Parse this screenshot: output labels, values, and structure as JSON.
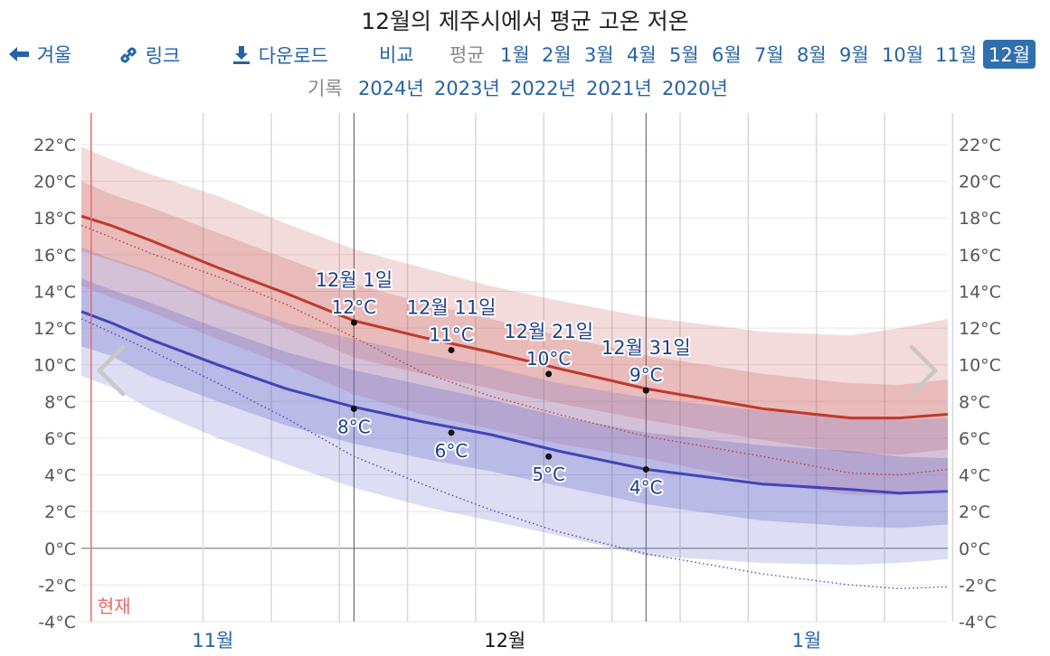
{
  "title": "12월의 제주시에서 평균 고온 저온",
  "toolbar": {
    "back_label": "겨울",
    "link_label": "링크",
    "download_label": "다운로드",
    "compare_label": "비교",
    "average_label": "평균",
    "months": [
      "1월",
      "2월",
      "3월",
      "4월",
      "5월",
      "6월",
      "7월",
      "8월",
      "9월",
      "10월",
      "11월",
      "12월"
    ],
    "active_month": "12월",
    "record_label": "기록",
    "years": [
      "2024년",
      "2023년",
      "2022년",
      "2021년",
      "2020년"
    ]
  },
  "chart_data": {
    "type": "area",
    "title": "12월의 제주시에서 평균 고온 저온",
    "x_axis_labels": [
      {
        "label": "11월",
        "day": -14.5
      },
      {
        "label": "12월",
        "day": 15.5
      },
      {
        "label": "1월",
        "day": 46.5
      }
    ],
    "bold_month_label": "12월",
    "xlim": [
      -28,
      61
    ],
    "ylim": [
      -4,
      23
    ],
    "y_ticks": [
      -4,
      -2,
      0,
      2,
      4,
      6,
      8,
      10,
      12,
      14,
      16,
      18,
      20,
      22
    ],
    "y_tick_labels": [
      "-4°C",
      "-2°C",
      "0°C",
      "2°C",
      "4°C",
      "6°C",
      "8°C",
      "10°C",
      "12°C",
      "14°C",
      "16°C",
      "18°C",
      "20°C",
      "22°C"
    ],
    "now_label": "현재",
    "now_day": -27,
    "highlight_days": [
      0,
      30
    ],
    "x": [
      -28,
      -25,
      -21,
      -14,
      -7,
      0,
      7,
      14,
      21,
      30,
      42,
      51,
      56,
      61
    ],
    "series": [
      {
        "kind": "high_mean",
        "color": "#c0392b",
        "values": [
          18.1,
          17.6,
          16.8,
          15.3,
          13.9,
          12.4,
          11.5,
          10.7,
          9.8,
          8.7,
          7.6,
          7.1,
          7.1,
          7.3
        ]
      },
      {
        "kind": "high_band_inner",
        "upper": [
          20.0,
          19.3,
          18.6,
          17.2,
          15.8,
          14.4,
          13.4,
          12.5,
          11.6,
          10.5,
          9.5,
          9.0,
          8.9,
          9.2
        ],
        "lower": [
          16.2,
          15.7,
          15.0,
          13.4,
          12.0,
          10.4,
          9.5,
          8.7,
          7.9,
          7.0,
          5.9,
          5.2,
          5.1,
          5.4
        ]
      },
      {
        "kind": "high_band_outer",
        "upper": [
          21.9,
          21.2,
          20.4,
          19.2,
          17.7,
          16.3,
          15.3,
          14.3,
          13.5,
          12.6,
          11.8,
          11.6,
          12.0,
          12.5
        ],
        "lower": [
          14.3,
          13.7,
          12.9,
          11.4,
          10.0,
          8.4,
          7.3,
          6.5,
          5.7,
          4.9,
          3.6,
          2.9,
          2.9,
          3.2
        ]
      },
      {
        "kind": "low_mean",
        "color": "#4343b8",
        "values": [
          12.9,
          12.3,
          11.4,
          10.0,
          8.7,
          7.7,
          6.9,
          6.2,
          5.3,
          4.3,
          3.5,
          3.2,
          3.0,
          3.1
        ]
      },
      {
        "kind": "low_band_inner",
        "upper": [
          14.7,
          14.1,
          13.4,
          12.0,
          10.7,
          9.7,
          8.9,
          8.1,
          7.2,
          6.3,
          5.6,
          5.3,
          5.0,
          4.9
        ],
        "lower": [
          11.0,
          10.5,
          9.4,
          8.0,
          6.7,
          5.7,
          4.9,
          4.2,
          3.4,
          2.4,
          1.5,
          1.2,
          1.1,
          1.3
        ]
      },
      {
        "kind": "low_band_outer",
        "upper": [
          16.4,
          15.8,
          15.1,
          13.6,
          12.3,
          11.4,
          10.6,
          9.9,
          9.0,
          8.2,
          7.5,
          7.2,
          7.0,
          7.1
        ],
        "lower": [
          9.4,
          8.8,
          7.6,
          6.0,
          4.6,
          3.3,
          2.3,
          1.5,
          0.7,
          -0.4,
          -0.8,
          -0.9,
          -0.8,
          -0.6
        ]
      }
    ],
    "record_high_dotted": {
      "color": "#c0392b",
      "x": [
        -28,
        -21,
        -14,
        -7,
        0,
        7,
        14,
        21,
        30,
        42,
        51,
        56,
        61
      ],
      "values": [
        17.6,
        16.1,
        14.8,
        13.3,
        11.5,
        9.6,
        8.3,
        7.3,
        6.1,
        5.0,
        4.1,
        4.0,
        4.3
      ]
    },
    "record_low_dotted": {
      "color": "#4343b8",
      "x": [
        -28,
        -21,
        -14,
        -7,
        0,
        7,
        14,
        21,
        30,
        42,
        51,
        56,
        61
      ],
      "values": [
        12.5,
        10.8,
        9.0,
        7.1,
        5.0,
        3.5,
        2.1,
        0.9,
        -0.3,
        -1.4,
        -2.0,
        -2.2,
        -2.1
      ]
    },
    "annotations": [
      {
        "date": "12월 1일",
        "day": 0,
        "high": "12°C",
        "low": "8°C",
        "high_value": 12.3,
        "low_value": 7.6
      },
      {
        "date": "12월 11일",
        "day": 10,
        "high": "11°C",
        "low": "6°C",
        "high_value": 10.8,
        "low_value": 6.3
      },
      {
        "date": "12월 21일",
        "day": 20,
        "high": "10°C",
        "low": "5°C",
        "high_value": 9.5,
        "low_value": 5.0
      },
      {
        "date": "12월 31일",
        "day": 30,
        "high": "9°C",
        "low": "4°C",
        "high_value": 8.6,
        "low_value": 4.3
      }
    ],
    "grid": true
  }
}
